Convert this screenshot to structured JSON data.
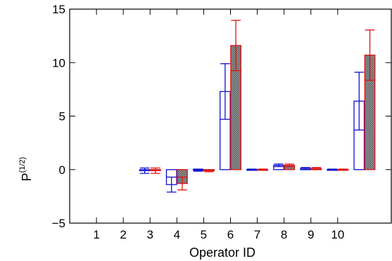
{
  "chart_data": {
    "type": "bar",
    "xlabel": "Operator ID",
    "ylabel_base": "P",
    "ylabel_sup": "(1/2)",
    "ylim": [
      -5,
      15
    ],
    "yticks": [
      -5,
      0,
      5,
      10,
      15
    ],
    "ytick_labels": [
      "−5",
      "0",
      "5",
      "10",
      "15"
    ],
    "xlim": [
      0,
      12
    ],
    "xticks": [
      1,
      2,
      3,
      4,
      5,
      6,
      7,
      8,
      9,
      10
    ],
    "xtick_labels": [
      "1",
      "2",
      "3",
      "4",
      "5",
      "6",
      "7",
      "8",
      "9",
      "10"
    ],
    "grid": false,
    "series": [
      {
        "color": "#1010d0",
        "fill": "none",
        "offset": -0.2,
        "points": [
          {
            "x": 3,
            "y": -0.1,
            "err": 0.25
          },
          {
            "x": 4,
            "y": -1.4,
            "err": 0.7
          },
          {
            "x": 5,
            "y": -0.05,
            "err": 0.1
          },
          {
            "x": 6,
            "y": 7.3,
            "err": 2.6
          },
          {
            "x": 7,
            "y": 0.0,
            "err": 0.05
          },
          {
            "x": 8,
            "y": 0.4,
            "err": 0.12
          },
          {
            "x": 9,
            "y": 0.1,
            "err": 0.1
          },
          {
            "x": 10,
            "y": 0.0,
            "err": 0.05
          },
          {
            "x": 11,
            "y": 6.4,
            "err": 2.7
          }
        ]
      },
      {
        "color": "#e01010",
        "fill": "hatched-gray",
        "offset": 0.2,
        "points": [
          {
            "x": 3,
            "y": -0.1,
            "err": 0.25
          },
          {
            "x": 4,
            "y": -1.3,
            "err": 0.6
          },
          {
            "x": 5,
            "y": -0.1,
            "err": 0.1
          },
          {
            "x": 6,
            "y": 11.6,
            "err": 2.35
          },
          {
            "x": 7,
            "y": 0.0,
            "err": 0.05
          },
          {
            "x": 8,
            "y": 0.4,
            "err": 0.12
          },
          {
            "x": 9,
            "y": 0.1,
            "err": 0.1
          },
          {
            "x": 10,
            "y": 0.0,
            "err": 0.05
          },
          {
            "x": 11,
            "y": 10.7,
            "err": 2.35
          }
        ]
      }
    ]
  }
}
